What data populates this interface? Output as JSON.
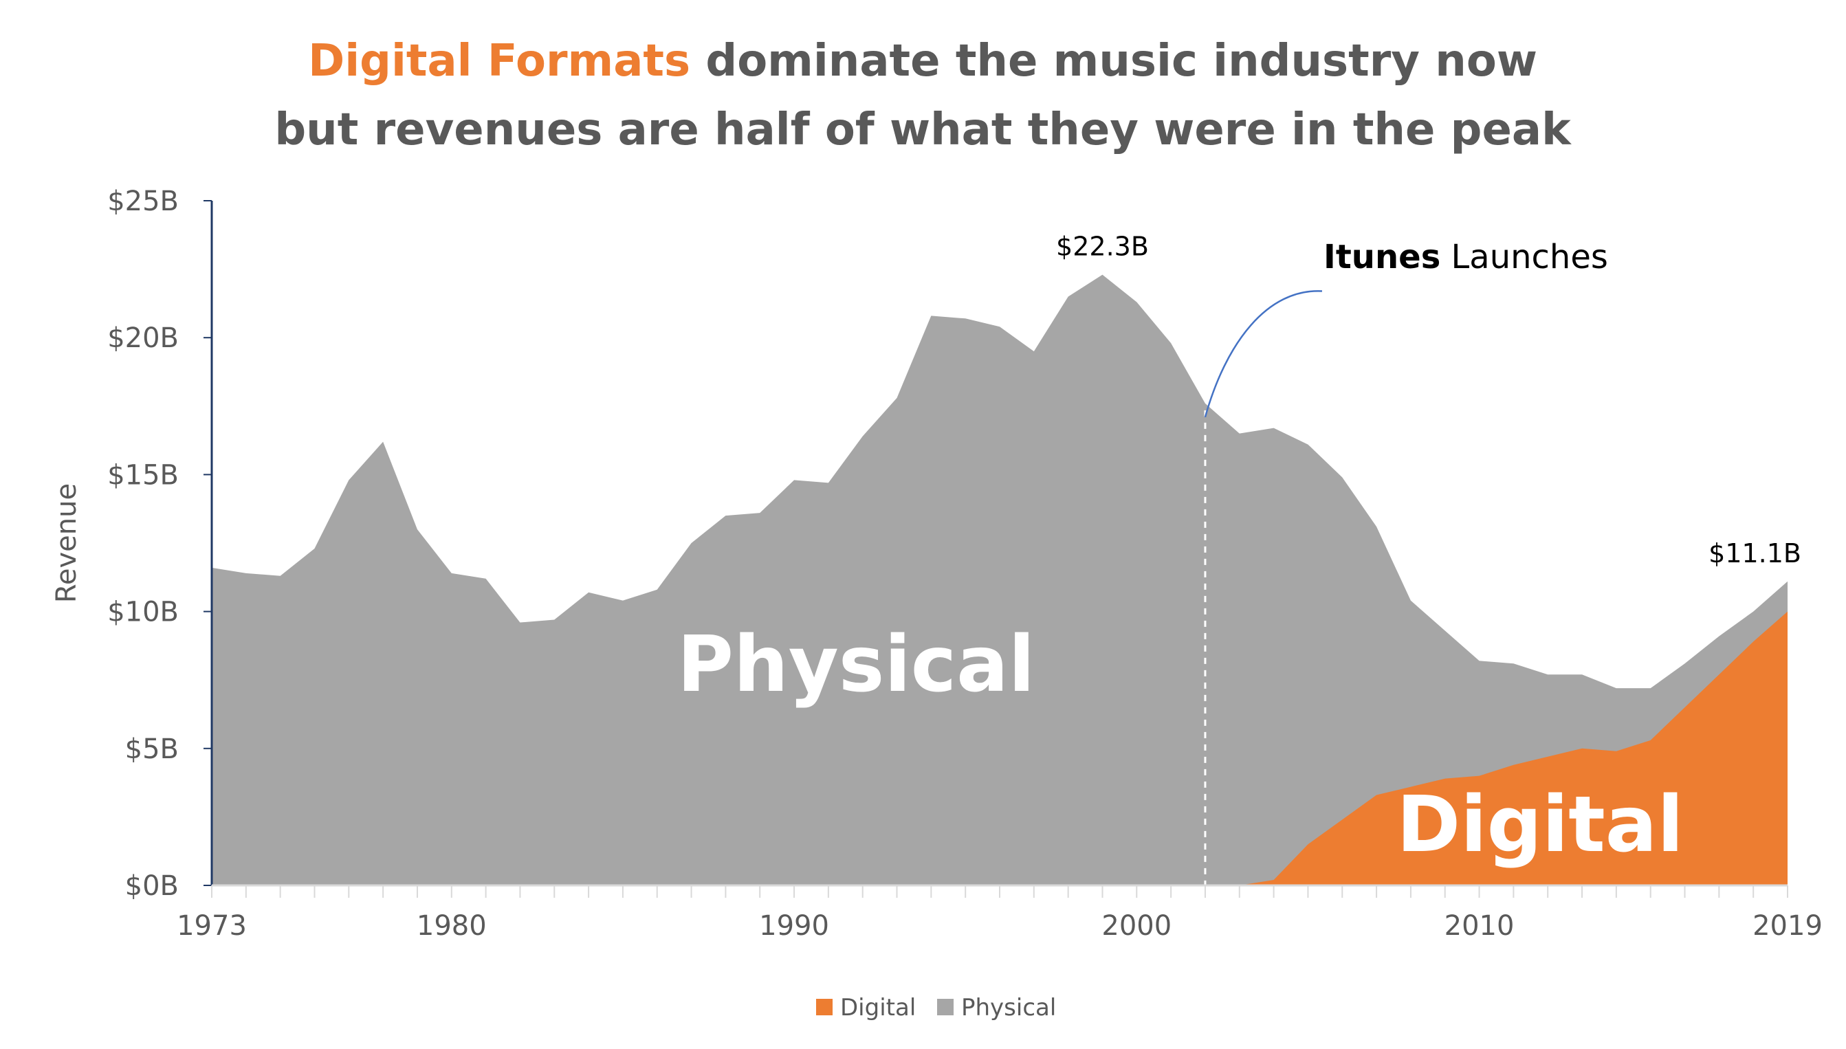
{
  "title": {
    "line1_highlight": "Digital Formats",
    "line1_rest": " dominate the music industry now",
    "line2": "but revenues are half of what they were in the peak"
  },
  "colors": {
    "physical": "#a6a6a6",
    "digital": "#ed7d31",
    "title_highlight": "#ed7d31",
    "title_text": "#595959",
    "axis": "#1f3864",
    "annotation_line": "#4472c4"
  },
  "chart_data": {
    "type": "area",
    "stacked": true,
    "x": [
      1973,
      1974,
      1975,
      1976,
      1977,
      1978,
      1979,
      1980,
      1981,
      1982,
      1983,
      1984,
      1985,
      1986,
      1987,
      1988,
      1989,
      1990,
      1991,
      1992,
      1993,
      1994,
      1995,
      1996,
      1997,
      1998,
      1999,
      2000,
      2001,
      2002,
      2003,
      2004,
      2005,
      2006,
      2007,
      2008,
      2009,
      2010,
      2011,
      2012,
      2013,
      2014,
      2015,
      2016,
      2017,
      2018,
      2019
    ],
    "series": [
      {
        "name": "Digital",
        "color": "#ed7d31",
        "values": [
          0,
          0,
          0,
          0,
          0,
          0,
          0,
          0,
          0,
          0,
          0,
          0,
          0,
          0,
          0,
          0,
          0,
          0,
          0,
          0,
          0,
          0,
          0,
          0,
          0,
          0,
          0,
          0,
          0,
          0,
          0,
          0.2,
          1.5,
          2.4,
          3.3,
          3.6,
          3.9,
          4.0,
          4.4,
          4.7,
          5.0,
          4.9,
          5.3,
          6.5,
          7.7,
          8.9,
          10.0
        ]
      },
      {
        "name": "Physical",
        "color": "#a6a6a6",
        "values": [
          11.6,
          11.4,
          11.3,
          12.3,
          14.8,
          16.2,
          13.0,
          11.4,
          11.2,
          9.6,
          9.7,
          10.7,
          10.4,
          10.8,
          12.5,
          13.5,
          13.6,
          14.8,
          14.7,
          16.4,
          17.8,
          20.8,
          20.7,
          20.4,
          19.5,
          21.5,
          22.3,
          21.3,
          19.8,
          17.6,
          16.5,
          16.5,
          14.6,
          12.5,
          9.8,
          6.8,
          5.4,
          4.2,
          3.7,
          3.0,
          2.7,
          2.3,
          1.9,
          1.6,
          1.4,
          1.1,
          1.1
        ]
      }
    ],
    "xlabel": "",
    "ylabel": "Revenue",
    "ylim": [
      0,
      25
    ],
    "xlim": [
      1973,
      2019
    ],
    "y_ticks": [
      0,
      5,
      10,
      15,
      20,
      25
    ],
    "y_tick_labels": [
      "$0B",
      "$5B",
      "$10B",
      "$15B",
      "$20B",
      "$25B"
    ],
    "x_ticks": [
      1973,
      1980,
      1990,
      2000,
      2010,
      2019
    ],
    "x_tick_labels": [
      "1973",
      "1980",
      "1990",
      "2000",
      "2010",
      "2019"
    ],
    "grid": false,
    "legend_position": "bottom-center",
    "data_labels": [
      {
        "x": 1999,
        "text": "$22.3B"
      },
      {
        "x": 2019,
        "text": "$11.1B"
      }
    ],
    "area_labels": {
      "physical": "Physical",
      "digital": "Digital"
    },
    "annotation": {
      "x": 2002,
      "bold_text": "Itunes",
      "text": " Launches"
    }
  },
  "legend": {
    "items": [
      {
        "label": "Digital",
        "color": "#ed7d31"
      },
      {
        "label": "Physical",
        "color": "#a6a6a6"
      }
    ]
  }
}
